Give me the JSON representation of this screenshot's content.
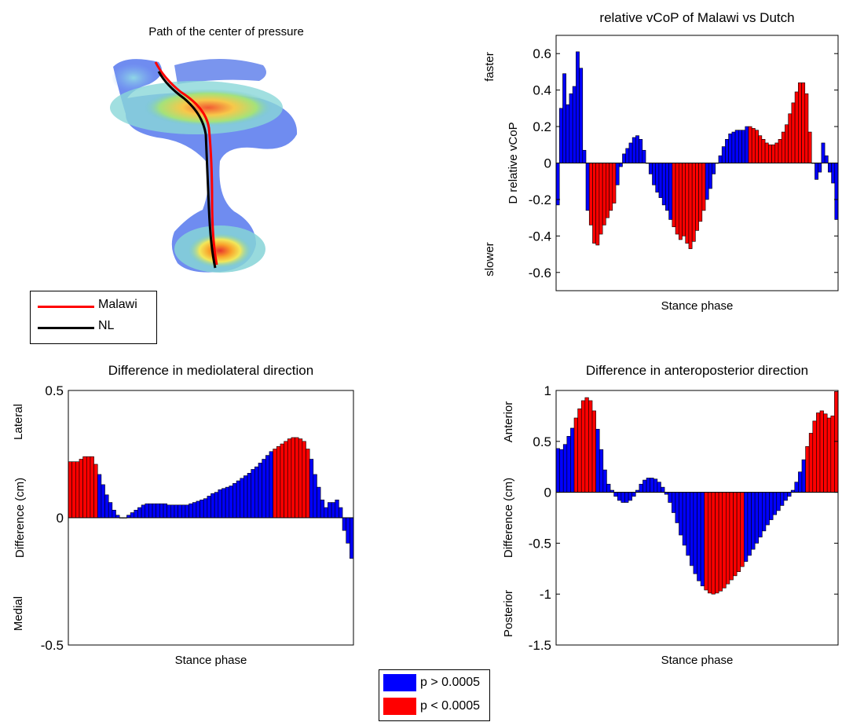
{
  "colors": {
    "sig_not": "#0000ff",
    "sig_yes": "#ff0000",
    "bar_edge": "#000000",
    "malawi_line": "#ff0000",
    "nl_line": "#000000"
  },
  "foot_panel": {
    "title": "Path of the center of pressure",
    "legend": [
      {
        "label": "Malawi",
        "color": "#ff0000"
      },
      {
        "label": "NL",
        "color": "#000000"
      }
    ]
  },
  "significance_legend": [
    {
      "label": "p > 0.0005",
      "color": "#0000ff"
    },
    {
      "label": "p < 0.0005",
      "color": "#ff0000"
    }
  ],
  "chart_data": [
    {
      "id": "vcop",
      "type": "bar",
      "title": "relative vCoP of Malawi vs Dutch",
      "xlabel": "Stance phase",
      "ylabel": "D relative vCoP",
      "ylabel_top": "faster",
      "ylabel_bottom": "slower",
      "ylim": [
        -0.7,
        0.7
      ],
      "yticks": [
        "0.6",
        "0.4",
        "0.2",
        "0",
        "-0.2",
        "-0.4",
        "-0.6"
      ],
      "ytick_values": [
        0.6,
        0.4,
        0.2,
        0,
        -0.2,
        -0.4,
        -0.6
      ],
      "grid": false,
      "values": [
        -0.23,
        0.3,
        0.49,
        0.32,
        0.38,
        0.42,
        0.61,
        0.52,
        0.07,
        -0.26,
        -0.34,
        -0.44,
        -0.45,
        -0.39,
        -0.34,
        -0.3,
        -0.26,
        -0.22,
        -0.12,
        -0.02,
        0.05,
        0.08,
        0.11,
        0.14,
        0.15,
        0.13,
        0.07,
        0.0,
        -0.06,
        -0.12,
        -0.16,
        -0.19,
        -0.23,
        -0.26,
        -0.31,
        -0.35,
        -0.39,
        -0.42,
        -0.4,
        -0.44,
        -0.47,
        -0.43,
        -0.37,
        -0.32,
        -0.26,
        -0.2,
        -0.14,
        -0.06,
        0.0,
        0.04,
        0.09,
        0.13,
        0.16,
        0.17,
        0.18,
        0.18,
        0.18,
        0.2,
        0.2,
        0.19,
        0.18,
        0.15,
        0.13,
        0.11,
        0.1,
        0.1,
        0.11,
        0.13,
        0.17,
        0.21,
        0.27,
        0.33,
        0.39,
        0.44,
        0.44,
        0.38,
        0.17,
        0.0,
        -0.09,
        -0.05,
        0.11,
        0.04,
        -0.05,
        -0.11,
        -0.31
      ],
      "significant": [
        0,
        0,
        0,
        0,
        0,
        0,
        0,
        0,
        0,
        0,
        1,
        1,
        1,
        1,
        1,
        1,
        1,
        1,
        0,
        0,
        0,
        0,
        0,
        0,
        0,
        0,
        0,
        0,
        0,
        0,
        0,
        0,
        0,
        0,
        0,
        1,
        1,
        1,
        1,
        1,
        1,
        1,
        1,
        1,
        1,
        0,
        0,
        0,
        0,
        0,
        0,
        0,
        0,
        0,
        0,
        0,
        0,
        0,
        1,
        1,
        1,
        1,
        1,
        1,
        1,
        1,
        1,
        1,
        1,
        1,
        1,
        1,
        1,
        1,
        1,
        1,
        1,
        0,
        0,
        0,
        0,
        0,
        0,
        0,
        0
      ]
    },
    {
      "id": "ml",
      "type": "bar",
      "title": "Difference in mediolateral direction",
      "xlabel": "Stance phase",
      "ylabel": "Difference (cm)",
      "ylabel_top": "Lateral",
      "ylabel_bottom": "Medial",
      "ylim": [
        -0.5,
        0.5
      ],
      "yticks": [
        "0.5",
        "0",
        "-0.5"
      ],
      "ytick_values": [
        0.5,
        0,
        -0.5
      ],
      "grid": false,
      "values": [
        0.22,
        0.22,
        0.22,
        0.23,
        0.24,
        0.24,
        0.24,
        0.21,
        0.17,
        0.13,
        0.09,
        0.06,
        0.03,
        0.01,
        0.0,
        0.0,
        0.01,
        0.02,
        0.03,
        0.04,
        0.05,
        0.055,
        0.055,
        0.055,
        0.055,
        0.055,
        0.055,
        0.05,
        0.05,
        0.05,
        0.05,
        0.05,
        0.05,
        0.055,
        0.06,
        0.065,
        0.07,
        0.075,
        0.085,
        0.095,
        0.1,
        0.11,
        0.115,
        0.12,
        0.125,
        0.135,
        0.145,
        0.155,
        0.165,
        0.175,
        0.19,
        0.2,
        0.215,
        0.23,
        0.245,
        0.26,
        0.27,
        0.28,
        0.29,
        0.3,
        0.31,
        0.315,
        0.315,
        0.31,
        0.3,
        0.27,
        0.23,
        0.17,
        0.12,
        0.07,
        0.04,
        0.06,
        0.06,
        0.07,
        0.04,
        -0.05,
        -0.1,
        -0.16
      ],
      "significant": [
        1,
        1,
        1,
        1,
        1,
        1,
        1,
        1,
        0,
        0,
        0,
        0,
        0,
        0,
        0,
        0,
        0,
        0,
        0,
        0,
        0,
        0,
        0,
        0,
        0,
        0,
        0,
        0,
        0,
        0,
        0,
        0,
        0,
        0,
        0,
        0,
        0,
        0,
        0,
        0,
        0,
        0,
        0,
        0,
        0,
        0,
        0,
        0,
        0,
        0,
        0,
        0,
        0,
        0,
        0,
        0,
        1,
        1,
        1,
        1,
        1,
        1,
        1,
        1,
        1,
        1,
        0,
        0,
        0,
        0,
        0,
        0,
        0,
        0,
        0,
        0,
        0,
        0
      ]
    },
    {
      "id": "ap",
      "type": "bar",
      "title": "Difference in anteroposterior direction",
      "xlabel": "Stance phase",
      "ylabel": "Difference (cm)",
      "ylabel_top": "Anterior",
      "ylabel_bottom": "Posterior",
      "ylim": [
        -1.5,
        1
      ],
      "yticks": [
        "1",
        "0.5",
        "0",
        "-0.5",
        "-1",
        "-1.5"
      ],
      "ytick_values": [
        1,
        0.5,
        0,
        -0.5,
        -1,
        -1.5
      ],
      "grid": false,
      "values": [
        0.43,
        0.42,
        0.47,
        0.55,
        0.63,
        0.73,
        0.82,
        0.9,
        0.93,
        0.9,
        0.8,
        0.62,
        0.42,
        0.22,
        0.08,
        0.02,
        -0.04,
        -0.08,
        -0.1,
        -0.1,
        -0.08,
        -0.04,
        0.02,
        0.08,
        0.12,
        0.14,
        0.14,
        0.13,
        0.1,
        0.05,
        -0.02,
        -0.1,
        -0.2,
        -0.3,
        -0.42,
        -0.52,
        -0.62,
        -0.72,
        -0.8,
        -0.87,
        -0.92,
        -0.96,
        -0.99,
        -1.0,
        -0.99,
        -0.97,
        -0.94,
        -0.9,
        -0.86,
        -0.82,
        -0.78,
        -0.73,
        -0.68,
        -0.62,
        -0.56,
        -0.5,
        -0.44,
        -0.38,
        -0.32,
        -0.27,
        -0.22,
        -0.18,
        -0.13,
        -0.08,
        -0.04,
        0.02,
        0.1,
        0.2,
        0.32,
        0.45,
        0.58,
        0.7,
        0.78,
        0.8,
        0.77,
        0.73,
        0.75,
        0.99
      ],
      "significant": [
        0,
        0,
        0,
        0,
        0,
        1,
        1,
        1,
        1,
        1,
        1,
        0,
        0,
        0,
        0,
        0,
        0,
        0,
        0,
        0,
        0,
        0,
        0,
        0,
        0,
        0,
        0,
        0,
        0,
        0,
        0,
        0,
        0,
        0,
        0,
        0,
        0,
        0,
        0,
        0,
        0,
        1,
        1,
        1,
        1,
        1,
        1,
        1,
        1,
        1,
        1,
        1,
        0,
        0,
        0,
        0,
        0,
        0,
        0,
        0,
        0,
        0,
        0,
        0,
        0,
        0,
        0,
        0,
        0,
        1,
        1,
        1,
        1,
        1,
        1,
        1,
        1,
        1
      ]
    }
  ]
}
